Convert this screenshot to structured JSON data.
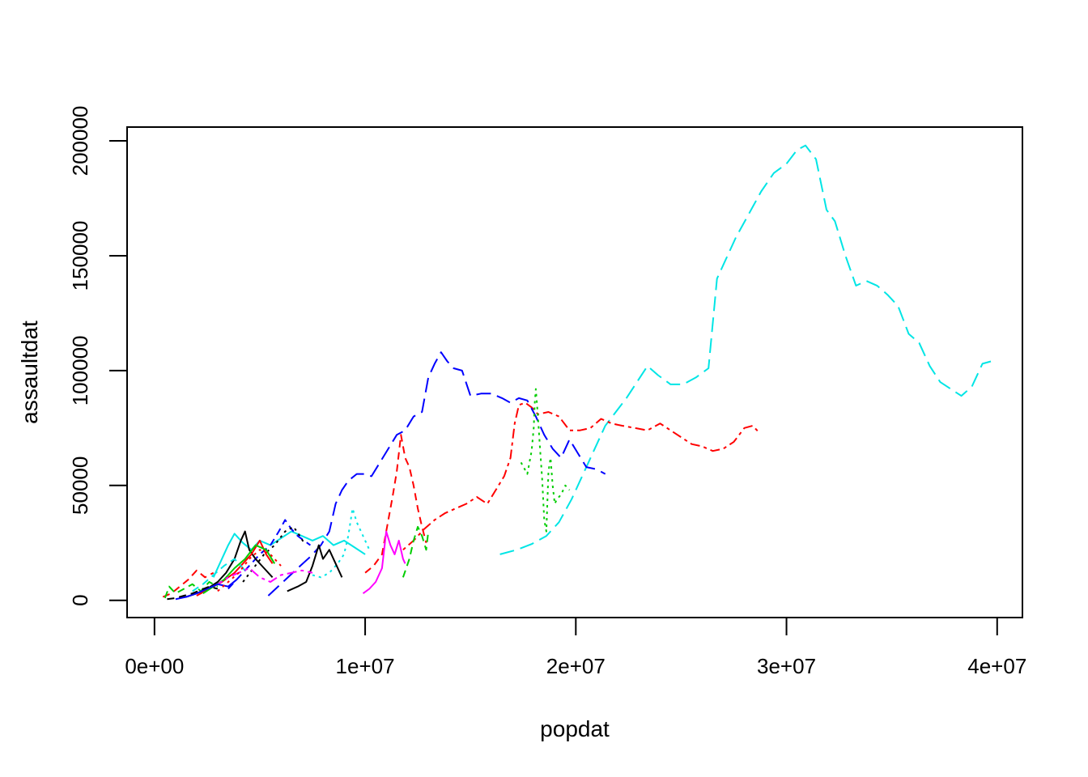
{
  "chart_data": {
    "type": "line",
    "title": "",
    "xlabel": "popdat",
    "ylabel": "assaultdat",
    "xlim": [
      -1300000,
      41200000
    ],
    "ylim": [
      -7500,
      206000
    ],
    "x_ticks": [
      {
        "value": 0,
        "label": "0e+00"
      },
      {
        "value": 10000000,
        "label": "1e+07"
      },
      {
        "value": 20000000,
        "label": "2e+07"
      },
      {
        "value": 30000000,
        "label": "3e+07"
      },
      {
        "value": 40000000,
        "label": "4e+07"
      }
    ],
    "y_ticks": [
      {
        "value": 0,
        "label": "0"
      },
      {
        "value": 50000,
        "label": "50000"
      },
      {
        "value": 100000,
        "label": "100000"
      },
      {
        "value": 150000,
        "label": "150000"
      },
      {
        "value": 200000,
        "label": "200000"
      }
    ],
    "grid": false,
    "legend": "none",
    "series": [
      {
        "color": "#00E5E5",
        "dash": "long",
        "x": [
          16400000,
          17200000,
          17900000,
          18600000,
          19200000,
          19800000,
          20200000,
          20600000,
          21000000,
          21400000,
          21900000,
          22400000,
          22900000,
          23400000,
          23900000,
          24500000,
          25100000,
          25700000,
          26300000,
          26700000,
          27100000,
          27600000,
          28200000,
          28800000,
          29400000,
          30000000,
          30500000,
          30900000,
          31400000,
          31900000,
          32300000,
          32800000,
          33300000,
          33800000,
          34300000,
          34800000,
          35300000,
          35800000,
          36300000,
          36800000,
          37300000,
          37800000,
          38300000,
          38800000,
          39300000,
          39700000
        ],
        "y": [
          20000,
          22000,
          24500,
          28000,
          34000,
          44000,
          52000,
          60000,
          68000,
          76000,
          82000,
          88000,
          95000,
          102000,
          98000,
          94000,
          94000,
          97000,
          101000,
          140000,
          148000,
          158000,
          168000,
          178000,
          186000,
          190000,
          196000,
          198000,
          192000,
          170000,
          165000,
          150000,
          137000,
          139000,
          137000,
          133000,
          128000,
          116000,
          112000,
          102000,
          95000,
          92000,
          89000,
          93000,
          103000,
          104000
        ]
      },
      {
        "color": "#FF0000",
        "dash": "dashdot",
        "x": [
          11800000,
          12300000,
          12800000,
          13300000,
          13800000,
          14300000,
          14800000,
          15300000,
          15800000,
          16200000,
          16600000,
          16900000,
          17100000,
          17300000,
          17600000,
          17900000,
          18200000,
          18700000,
          19200000,
          19700000,
          20200000,
          20700000,
          21200000,
          21700000,
          22200000,
          22800000,
          23400000,
          24000000,
          24500000,
          25000000,
          25500000,
          26000000,
          26500000,
          27000000,
          27500000,
          28000000,
          28400000,
          28700000
        ],
        "y": [
          22000,
          26000,
          31000,
          35000,
          38000,
          40000,
          42000,
          45000,
          42000,
          48000,
          54000,
          62000,
          77000,
          85000,
          86000,
          84000,
          81000,
          82000,
          80000,
          74000,
          74000,
          75000,
          79000,
          77000,
          76000,
          75000,
          74000,
          77000,
          74000,
          71000,
          68000,
          67000,
          65000,
          66000,
          69000,
          75000,
          76000,
          73000
        ]
      },
      {
        "color": "#0000FF",
        "dash": "long",
        "x": [
          5400000,
          6100000,
          6800000,
          7400000,
          7900000,
          8300000,
          8600000,
          8900000,
          9200000,
          9600000,
          10000000,
          10300000,
          10700000,
          11100000,
          11500000,
          11900000,
          12300000,
          12700000,
          13000000,
          13300000,
          13600000,
          13900000,
          14200000,
          14600000,
          15000000,
          15500000,
          16000000,
          16500000,
          16900000,
          17300000,
          17700000,
          18100000,
          18500000,
          18900000,
          19300000,
          19700000,
          20100000,
          20500000,
          21000000,
          21400000
        ],
        "y": [
          2000,
          8000,
          14000,
          19000,
          24000,
          30000,
          42000,
          48000,
          52000,
          55000,
          55000,
          54000,
          60000,
          66000,
          72000,
          74000,
          80000,
          82000,
          97000,
          103000,
          108000,
          104000,
          101000,
          100000,
          89000,
          90000,
          90000,
          88000,
          86000,
          88000,
          87000,
          80000,
          72000,
          66000,
          62000,
          70000,
          64000,
          58000,
          57000,
          55000
        ]
      },
      {
        "color": "#00CD00",
        "dash": "dotted",
        "x": [
          17400000,
          17700000,
          17900000,
          18000000,
          18050000,
          18100000,
          18200000,
          18300000,
          18400000,
          18500000,
          18600000,
          18700000,
          18800000,
          18900000,
          19000000,
          19100000,
          19300000,
          19500000,
          19700000
        ],
        "y": [
          60000,
          55000,
          65000,
          75000,
          86000,
          92000,
          80000,
          66000,
          53000,
          35000,
          30000,
          56000,
          62000,
          50000,
          42000,
          44000,
          46000,
          50000,
          48000
        ]
      },
      {
        "color": "#00E5E5",
        "dash": "dotted",
        "x": [
          7500000,
          7900000,
          8300000,
          8700000,
          9000000,
          9200000,
          9400000,
          9600000,
          9800000,
          10000000,
          10200000
        ],
        "y": [
          11000,
          10000,
          12000,
          16000,
          20000,
          28000,
          40000,
          34000,
          30000,
          26000,
          22000
        ]
      },
      {
        "color": "#FF0000",
        "dash": "dashed",
        "x": [
          10000000,
          10400000,
          10800000,
          11000000,
          11300000,
          11500000,
          11700000,
          11900000,
          12100000,
          12300000,
          12500000,
          12700000,
          12900000
        ],
        "y": [
          12000,
          15000,
          20000,
          30000,
          45000,
          56000,
          72000,
          62000,
          58000,
          50000,
          40000,
          32000,
          25000
        ]
      },
      {
        "color": "#FF00FF",
        "dash": "solid",
        "x": [
          9900000,
          10200000,
          10500000,
          10800000,
          11000000,
          11200000,
          11400000,
          11600000,
          11800000,
          11900000
        ],
        "y": [
          3000,
          5000,
          8000,
          14000,
          30000,
          24000,
          20000,
          26000,
          18000,
          16000
        ]
      },
      {
        "color": "#00CD00",
        "dash": "dashed",
        "x": [
          11800000,
          12100000,
          12300000,
          12500000,
          12700000,
          12900000,
          13000000
        ],
        "y": [
          10000,
          18000,
          26000,
          32000,
          28000,
          22000,
          30000
        ]
      },
      {
        "color": "#000000",
        "dash": "solid",
        "x": [
          6300000,
          6800000,
          7200000,
          7500000,
          7800000,
          8000000,
          8300000,
          8600000,
          8900000
        ],
        "y": [
          4000,
          6000,
          8000,
          15000,
          24000,
          18000,
          22000,
          16000,
          10000
        ]
      },
      {
        "color": "#00E5E5",
        "dash": "solid",
        "x": [
          2800000,
          3200000,
          3500000,
          3800000,
          4200000,
          4600000,
          5000000,
          5500000,
          6000000,
          6500000,
          7000000,
          7500000,
          8000000,
          8500000,
          9000000,
          9500000,
          10000000
        ],
        "y": [
          10000,
          18000,
          24000,
          29000,
          25000,
          22000,
          26000,
          24000,
          27000,
          30000,
          28000,
          26000,
          28000,
          24000,
          26000,
          23000,
          20000
        ]
      },
      {
        "color": "#0000FF",
        "dash": "dashed",
        "x": [
          3500000,
          4000000,
          4500000,
          5000000,
          5500000,
          5900000,
          6200000,
          6500000,
          6800000,
          7100000,
          7400000
        ],
        "y": [
          5000,
          10000,
          15000,
          20000,
          24000,
          30000,
          35000,
          31000,
          28000,
          26000,
          24000
        ]
      },
      {
        "color": "#000000",
        "dash": "dotted",
        "x": [
          4200000,
          4700000,
          5200000,
          5700000,
          6200000,
          6600000,
          6900000,
          7100000
        ],
        "y": [
          8000,
          14000,
          20000,
          24000,
          30000,
          32000,
          28000,
          25000
        ]
      },
      {
        "color": "#FF0000",
        "dash": "dashed",
        "x": [
          400000,
          800000,
          1200000,
          1600000,
          2000000,
          2400000,
          2800000
        ],
        "y": [
          1500,
          3000,
          6000,
          9000,
          13000,
          10000,
          12000
        ]
      },
      {
        "color": "#00CD00",
        "dash": "dashed",
        "x": [
          500000,
          700000,
          1000000,
          1400000,
          1800000,
          2200000,
          2600000,
          3000000
        ],
        "y": [
          1000,
          6000,
          3000,
          5000,
          7000,
          4000,
          8000,
          6000
        ]
      },
      {
        "color": "#000000",
        "dash": "solid",
        "x": [
          1500000,
          2000000,
          2500000,
          3000000,
          3400000,
          3800000,
          4100000,
          4300000,
          4500000,
          4800000,
          5200000,
          5600000
        ],
        "y": [
          1500,
          3000,
          5000,
          8000,
          12000,
          18000,
          26000,
          30000,
          22000,
          18000,
          14000,
          10000
        ]
      },
      {
        "color": "#FF0000",
        "dash": "solid",
        "x": [
          2000000,
          2600000,
          3200000,
          3800000,
          4200000,
          4600000,
          5000000,
          5300000,
          5600000
        ],
        "y": [
          2000,
          5000,
          8000,
          12000,
          16000,
          20000,
          26000,
          20000,
          16000
        ]
      },
      {
        "color": "#00CD00",
        "dash": "solid",
        "x": [
          2300000,
          2800000,
          3300000,
          3800000,
          4300000,
          4800000,
          5300000,
          5700000
        ],
        "y": [
          3000,
          6000,
          9000,
          14000,
          18000,
          24000,
          22000,
          16000
        ]
      },
      {
        "color": "#FF00FF",
        "dash": "dashdot",
        "x": [
          2500000,
          3000000,
          3500000,
          4000000,
          4500000,
          5000000,
          5500000,
          6000000,
          6500000,
          7000000,
          7500000
        ],
        "y": [
          5000,
          7000,
          10000,
          12000,
          14000,
          10000,
          8000,
          11000,
          12000,
          13000,
          12000
        ]
      },
      {
        "color": "#0000FF",
        "dash": "solid",
        "x": [
          1000000,
          1500000,
          2000000,
          2500000,
          3000000,
          3500000,
          3900000
        ],
        "y": [
          500,
          1500,
          3000,
          5000,
          7000,
          6000,
          9000
        ]
      },
      {
        "color": "#00E5E5",
        "dash": "dashed",
        "x": [
          1800000,
          2300000,
          2800000,
          3300000,
          3800000,
          4300000
        ],
        "y": [
          4000,
          7000,
          11000,
          15000,
          18000,
          13000
        ]
      },
      {
        "color": "#000000",
        "dash": "dashed",
        "x": [
          600000,
          1000000,
          1400000,
          1800000,
          2200000,
          2600000,
          3000000
        ],
        "y": [
          500,
          1000,
          2000,
          3000,
          4500,
          6000,
          5000
        ]
      },
      {
        "color": "#FF0000",
        "dash": "dotted",
        "x": [
          3000000,
          3500000,
          4000000,
          4500000,
          5000000,
          5500000,
          6000000
        ],
        "y": [
          4000,
          8000,
          12000,
          18000,
          22000,
          20000,
          15000
        ]
      }
    ]
  }
}
